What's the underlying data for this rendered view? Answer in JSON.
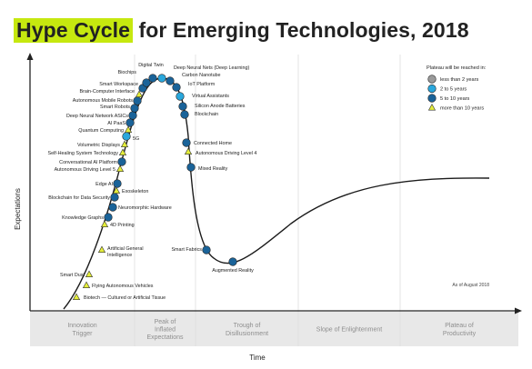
{
  "title": {
    "highlight": "Hype Cycle",
    "rest": "for Emerging Technologies, 2018"
  },
  "chart_data": {
    "type": "line",
    "title": "Hype Cycle for Emerging Technologies, 2018",
    "xlabel": "Time",
    "ylabel": "Expectations",
    "note": "As of August 2018",
    "phases": [
      "Innovation\nTrigger",
      "Peak of\nInflated\nExpectations",
      "Trough of\nDisillusionment",
      "Slope of Enlightenment",
      "Plateau of\nProductivity"
    ],
    "legend": {
      "title": "Plateau will be reached in:",
      "items": [
        {
          "key": "lt2",
          "label": "less than 2 years",
          "shape": "circle",
          "color": "#9a9a9a"
        },
        {
          "key": "2to5",
          "label": "2 to 5 years",
          "shape": "circle",
          "color": "#2aa7dc"
        },
        {
          "key": "5to10",
          "label": "5 to 10 years",
          "shape": "circle",
          "color": "#1a6399"
        },
        {
          "key": "gt10",
          "label": "more than 10 years",
          "shape": "triangle",
          "color": "#e5ee3a"
        }
      ]
    },
    "technologies": [
      {
        "name": "Biotech — Cultured or Artificial Tissue",
        "plateau": "gt10",
        "phase": "Innovation Trigger"
      },
      {
        "name": "Flying Autonomous Vehicles",
        "plateau": "gt10",
        "phase": "Innovation Trigger"
      },
      {
        "name": "Smart Dust",
        "plateau": "gt10",
        "phase": "Innovation Trigger"
      },
      {
        "name": "Artificial General Intelligence",
        "plateau": "gt10",
        "phase": "Innovation Trigger"
      },
      {
        "name": "4D Printing",
        "plateau": "gt10",
        "phase": "Innovation Trigger"
      },
      {
        "name": "Knowledge Graphs",
        "plateau": "5to10",
        "phase": "Innovation Trigger"
      },
      {
        "name": "Neuromorphic Hardware",
        "plateau": "5to10",
        "phase": "Innovation Trigger"
      },
      {
        "name": "Blockchain for Data Security",
        "plateau": "5to10",
        "phase": "Innovation Trigger"
      },
      {
        "name": "Exoskeleton",
        "plateau": "gt10",
        "phase": "Innovation Trigger"
      },
      {
        "name": "Edge AI",
        "plateau": "5to10",
        "phase": "Innovation Trigger"
      },
      {
        "name": "Autonomous Driving Level 5",
        "plateau": "gt10",
        "phase": "Innovation Trigger"
      },
      {
        "name": "Conversational AI Platform",
        "plateau": "5to10",
        "phase": "Innovation Trigger"
      },
      {
        "name": "Self-Healing System Technology",
        "plateau": "gt10",
        "phase": "Innovation Trigger"
      },
      {
        "name": "Volumetric Displays",
        "plateau": "gt10",
        "phase": "Innovation Trigger"
      },
      {
        "name": "5G",
        "plateau": "2to5",
        "phase": "Innovation Trigger"
      },
      {
        "name": "Quantum Computing",
        "plateau": "gt10",
        "phase": "Innovation Trigger"
      },
      {
        "name": "AI PaaS",
        "plateau": "5to10",
        "phase": "Innovation Trigger"
      },
      {
        "name": "Deep Neural Network ASICs",
        "plateau": "5to10",
        "phase": "Innovation Trigger"
      },
      {
        "name": "Smart Robots",
        "plateau": "5to10",
        "phase": "Peak of Inflated Expectations"
      },
      {
        "name": "Autonomous Mobile Robots",
        "plateau": "5to10",
        "phase": "Peak of Inflated Expectations"
      },
      {
        "name": "Brain-Computer Interface",
        "plateau": "gt10",
        "phase": "Peak of Inflated Expectations"
      },
      {
        "name": "Smart Workspace",
        "plateau": "5to10",
        "phase": "Peak of Inflated Expectations"
      },
      {
        "name": "Biochips",
        "plateau": "5to10",
        "phase": "Peak of Inflated Expectations"
      },
      {
        "name": "Digital Twin",
        "plateau": "5to10",
        "phase": "Peak of Inflated Expectations"
      },
      {
        "name": "Deep Neural Nets (Deep Learning)",
        "plateau": "2to5",
        "phase": "Peak of Inflated Expectations"
      },
      {
        "name": "Carbon Nanotube",
        "plateau": "5to10",
        "phase": "Peak of Inflated Expectations"
      },
      {
        "name": "IoT Platform",
        "plateau": "5to10",
        "phase": "Peak of Inflated Expectations"
      },
      {
        "name": "Virtual Assistants",
        "plateau": "2to5",
        "phase": "Peak of Inflated Expectations"
      },
      {
        "name": "Silicon Anode Batteries",
        "plateau": "5to10",
        "phase": "Peak of Inflated Expectations"
      },
      {
        "name": "Blockchain",
        "plateau": "5to10",
        "phase": "Peak of Inflated Expectations"
      },
      {
        "name": "Connected Home",
        "plateau": "5to10",
        "phase": "Trough of Disillusionment"
      },
      {
        "name": "Autonomous Driving Level 4",
        "plateau": "gt10",
        "phase": "Trough of Disillusionment"
      },
      {
        "name": "Mixed Reality",
        "plateau": "5to10",
        "phase": "Trough of Disillusionment"
      },
      {
        "name": "Smart Fabrics",
        "plateau": "5to10",
        "phase": "Trough of Disillusionment"
      },
      {
        "name": "Augmented Reality",
        "plateau": "5to10",
        "phase": "Trough of Disillusionment"
      }
    ]
  }
}
